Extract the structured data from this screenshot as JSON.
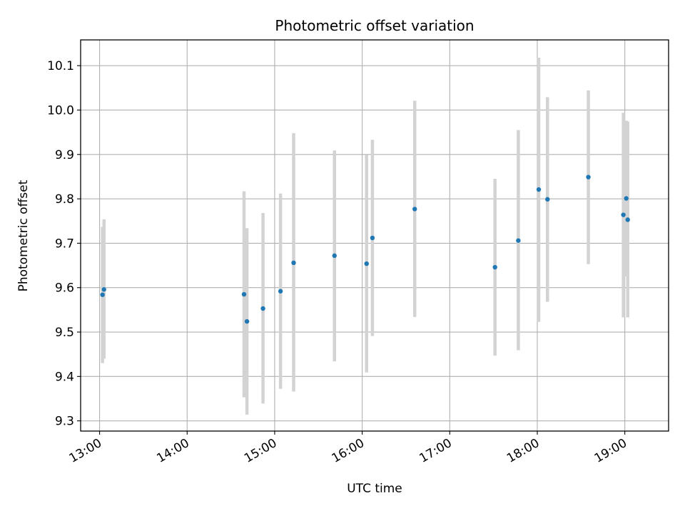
{
  "chart_data": {
    "type": "scatter",
    "title": "Photometric offset variation",
    "xlabel": "UTC time",
    "ylabel": "Photometric offset",
    "x_ticks": [
      "13:00",
      "14:00",
      "15:00",
      "16:00",
      "17:00",
      "18:00",
      "19:00"
    ],
    "y_ticks": [
      "9.3",
      "9.4",
      "9.5",
      "9.6",
      "9.7",
      "9.8",
      "9.9",
      "10.0",
      "10.1"
    ],
    "xlim": [
      "12:47",
      "19:30"
    ],
    "ylim": [
      9.277,
      10.158
    ],
    "grid": true,
    "colors": {
      "marker": "#1f77b4",
      "errorbar": "#d3d3d3",
      "grid": "#b0b0b0"
    },
    "points": [
      {
        "time": "13:02",
        "y": 9.584,
        "ylow": 9.43,
        "yhigh": 9.737
      },
      {
        "time": "13:03",
        "y": 9.596,
        "ylow": 9.44,
        "yhigh": 9.754
      },
      {
        "time": "14:39",
        "y": 9.585,
        "ylow": 9.353,
        "yhigh": 9.817
      },
      {
        "time": "14:41",
        "y": 9.524,
        "ylow": 9.314,
        "yhigh": 9.734
      },
      {
        "time": "14:52",
        "y": 9.553,
        "ylow": 9.339,
        "yhigh": 9.768
      },
      {
        "time": "15:04",
        "y": 9.592,
        "ylow": 9.372,
        "yhigh": 9.812
      },
      {
        "time": "15:13",
        "y": 9.656,
        "ylow": 9.366,
        "yhigh": 9.948
      },
      {
        "time": "15:41",
        "y": 9.672,
        "ylow": 9.434,
        "yhigh": 9.909
      },
      {
        "time": "16:03",
        "y": 9.654,
        "ylow": 9.409,
        "yhigh": 9.899
      },
      {
        "time": "16:07",
        "y": 9.712,
        "ylow": 9.491,
        "yhigh": 9.933
      },
      {
        "time": "16:36",
        "y": 9.777,
        "ylow": 9.534,
        "yhigh": 10.021
      },
      {
        "time": "17:31",
        "y": 9.646,
        "ylow": 9.447,
        "yhigh": 9.845
      },
      {
        "time": "17:47",
        "y": 9.706,
        "ylow": 9.459,
        "yhigh": 9.955
      },
      {
        "time": "18:01",
        "y": 9.821,
        "ylow": 9.523,
        "yhigh": 10.118
      },
      {
        "time": "18:07",
        "y": 9.799,
        "ylow": 9.568,
        "yhigh": 10.029
      },
      {
        "time": "18:35",
        "y": 9.849,
        "ylow": 9.653,
        "yhigh": 10.044
      },
      {
        "time": "18:59",
        "y": 9.764,
        "ylow": 9.533,
        "yhigh": 9.994
      },
      {
        "time": "19:01",
        "y": 9.801,
        "ylow": 9.625,
        "yhigh": 9.976
      },
      {
        "time": "19:02",
        "y": 9.753,
        "ylow": 9.533,
        "yhigh": 9.974
      }
    ]
  }
}
